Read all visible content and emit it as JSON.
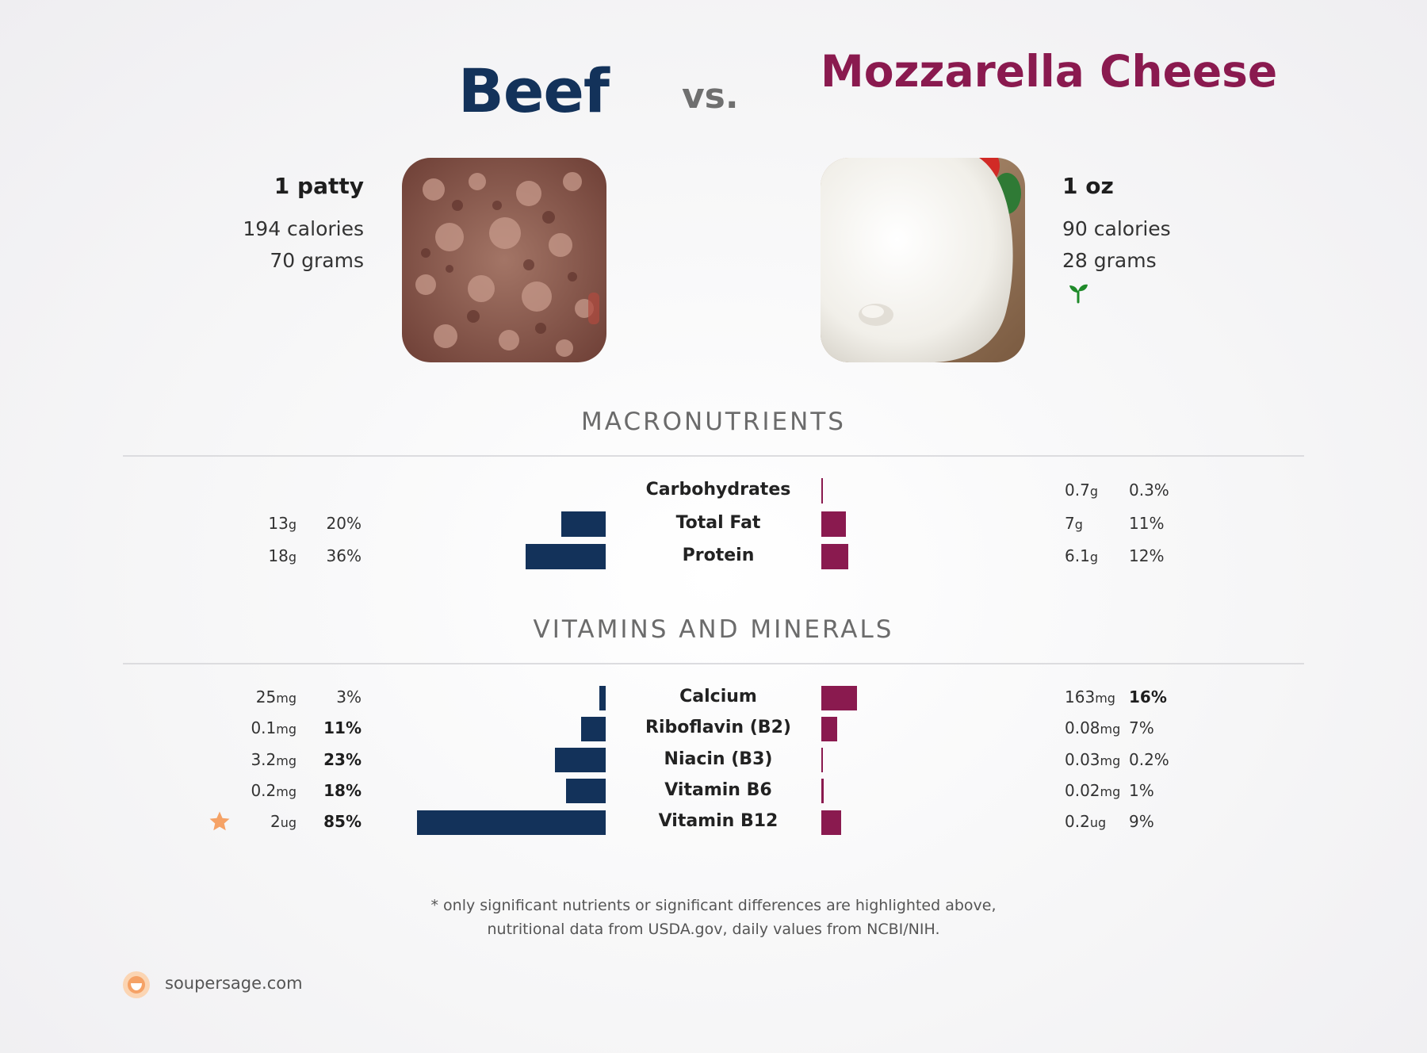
{
  "header": {
    "left_food": "Beef",
    "vs": "vs.",
    "right_food": "Mozzarella Cheese"
  },
  "left_info": {
    "serving": "1 patty",
    "calories": "194 calories",
    "grams": "70 grams"
  },
  "right_info": {
    "serving": "1 oz",
    "calories": "90 calories",
    "grams": "28 grams",
    "badge_icon": "sprout-icon"
  },
  "sections": {
    "macros_title": "MACRONUTRIENTS",
    "vitamins_title": "VITAMINS AND MINERALS"
  },
  "colors": {
    "left": "#13325a",
    "right": "#8a1a4f",
    "star": "#f5a266"
  },
  "chart_data": [
    {
      "type": "bar",
      "title": "MACRONUTRIENTS",
      "categories": [
        "Carbohydrates",
        "Total Fat",
        "Protein"
      ],
      "series": [
        {
          "name": "Beef",
          "amounts": [
            "",
            "13",
            "18"
          ],
          "units": [
            "",
            "g",
            "g"
          ],
          "percent_labels": [
            "",
            "20%",
            "36%"
          ],
          "percent_bold": [
            false,
            false,
            false
          ],
          "values": [
            0,
            20,
            36
          ]
        },
        {
          "name": "Mozzarella Cheese",
          "amounts": [
            "0.7",
            "7",
            "6.1"
          ],
          "units": [
            "g",
            "g",
            "g"
          ],
          "percent_labels": [
            "0.3%",
            "11%",
            "12%"
          ],
          "percent_bold": [
            false,
            false,
            false
          ],
          "values": [
            0.3,
            11,
            12
          ]
        }
      ]
    },
    {
      "type": "bar",
      "title": "VITAMINS AND MINERALS",
      "categories": [
        "Calcium",
        "Riboflavin (B2)",
        "Niacin (B3)",
        "Vitamin B6",
        "Vitamin B12"
      ],
      "series": [
        {
          "name": "Beef",
          "amounts": [
            "25",
            "0.1",
            "3.2",
            "0.2",
            "2"
          ],
          "units": [
            "mg",
            "mg",
            "mg",
            "mg",
            "ug"
          ],
          "percent_labels": [
            "3%",
            "11%",
            "23%",
            "18%",
            "85%"
          ],
          "percent_bold": [
            false,
            true,
            true,
            true,
            true
          ],
          "values": [
            3,
            11,
            23,
            18,
            85
          ],
          "star": [
            false,
            false,
            false,
            false,
            true
          ]
        },
        {
          "name": "Mozzarella Cheese",
          "amounts": [
            "163",
            "0.08",
            "0.03",
            "0.02",
            "0.2"
          ],
          "units": [
            "mg",
            "mg",
            "mg",
            "mg",
            "ug"
          ],
          "percent_labels": [
            "16%",
            "7%",
            "0.2%",
            "1%",
            "9%"
          ],
          "percent_bold": [
            true,
            false,
            false,
            false,
            false
          ],
          "values": [
            16,
            7,
            0.2,
            1,
            9
          ]
        }
      ]
    }
  ],
  "footnote": {
    "line1": "* only significant nutrients or significant differences are highlighted above,",
    "line2": "nutritional data from USDA.gov, daily values from NCBI/NIH."
  },
  "brand": {
    "name": "soupersage.com"
  }
}
